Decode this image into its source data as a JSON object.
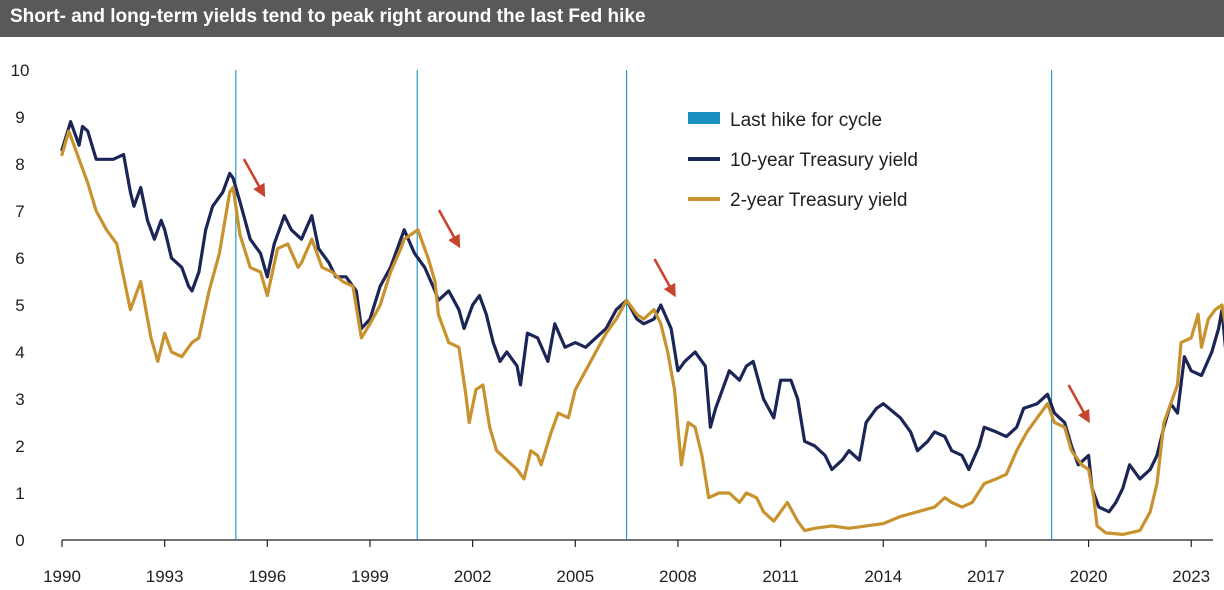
{
  "title": "Short- and long-term yields tend to peak right around the last Fed hike",
  "chart_data": {
    "type": "line",
    "xlim": [
      1990.0,
      2024.25
    ],
    "ylim": [
      0,
      10
    ],
    "x_ticks": [
      {
        "value": 1990,
        "label": "1990"
      },
      {
        "value": 1993,
        "label": "1993"
      },
      {
        "value": 1996,
        "label": "1996"
      },
      {
        "value": 1999,
        "label": "1999"
      },
      {
        "value": 2002,
        "label": "2002"
      },
      {
        "value": 2005,
        "label": "2005"
      },
      {
        "value": 2008,
        "label": "2008"
      },
      {
        "value": 2011,
        "label": "2011"
      },
      {
        "value": 2014,
        "label": "2014"
      },
      {
        "value": 2017,
        "label": "2017"
      },
      {
        "value": 2020,
        "label": "2020"
      },
      {
        "value": 2023,
        "label": "2023"
      }
    ],
    "y_ticks": [
      0,
      1,
      2,
      3,
      4,
      5,
      6,
      7,
      8,
      9,
      10
    ],
    "grid": false,
    "legend": {
      "position": "top-right",
      "entries": [
        {
          "label": "Last hike for cycle",
          "color": "#1a8fc0",
          "marker": "square"
        },
        {
          "label": "10-year Treasury yield",
          "color": "#1b2556",
          "marker": "line"
        },
        {
          "label": "2-year Treasury yield",
          "color": "#c8922e",
          "marker": "line"
        }
      ]
    },
    "last_hikes": [
      1995.08,
      2000.38,
      2006.5,
      2018.92
    ],
    "peak_arrows": [
      1995.9,
      2001.6,
      2007.9,
      2020.0
    ],
    "series": [
      {
        "name": "10-year Treasury yield",
        "color": "#1b2556",
        "points": [
          [
            1990.0,
            8.3
          ],
          [
            1990.25,
            8.9
          ],
          [
            1990.5,
            8.4
          ],
          [
            1990.6,
            8.8
          ],
          [
            1990.75,
            8.7
          ],
          [
            1991.0,
            8.1
          ],
          [
            1991.5,
            8.1
          ],
          [
            1991.8,
            8.2
          ],
          [
            1992.0,
            7.4
          ],
          [
            1992.1,
            7.1
          ],
          [
            1992.3,
            7.5
          ],
          [
            1992.5,
            6.8
          ],
          [
            1992.7,
            6.4
          ],
          [
            1992.9,
            6.8
          ],
          [
            1993.0,
            6.6
          ],
          [
            1993.2,
            6.0
          ],
          [
            1993.5,
            5.8
          ],
          [
            1993.7,
            5.4
          ],
          [
            1993.8,
            5.3
          ],
          [
            1994.0,
            5.7
          ],
          [
            1994.2,
            6.6
          ],
          [
            1994.4,
            7.1
          ],
          [
            1994.7,
            7.4
          ],
          [
            1994.9,
            7.8
          ],
          [
            1995.0,
            7.7
          ],
          [
            1995.2,
            7.2
          ],
          [
            1995.5,
            6.4
          ],
          [
            1995.8,
            6.1
          ],
          [
            1996.0,
            5.6
          ],
          [
            1996.2,
            6.3
          ],
          [
            1996.5,
            6.9
          ],
          [
            1996.7,
            6.6
          ],
          [
            1997.0,
            6.4
          ],
          [
            1997.3,
            6.9
          ],
          [
            1997.5,
            6.2
          ],
          [
            1997.8,
            5.9
          ],
          [
            1998.0,
            5.6
          ],
          [
            1998.3,
            5.6
          ],
          [
            1998.6,
            5.3
          ],
          [
            1998.75,
            4.5
          ],
          [
            1999.0,
            4.7
          ],
          [
            1999.3,
            5.4
          ],
          [
            1999.6,
            5.8
          ],
          [
            1999.9,
            6.4
          ],
          [
            2000.0,
            6.6
          ],
          [
            2000.3,
            6.1
          ],
          [
            2000.6,
            5.8
          ],
          [
            2000.9,
            5.3
          ],
          [
            2001.0,
            5.1
          ],
          [
            2001.3,
            5.3
          ],
          [
            2001.6,
            4.9
          ],
          [
            2001.75,
            4.5
          ],
          [
            2002.0,
            5.0
          ],
          [
            2002.2,
            5.2
          ],
          [
            2002.4,
            4.8
          ],
          [
            2002.6,
            4.2
          ],
          [
            2002.8,
            3.8
          ],
          [
            2003.0,
            4.0
          ],
          [
            2003.3,
            3.7
          ],
          [
            2003.4,
            3.3
          ],
          [
            2003.6,
            4.4
          ],
          [
            2003.9,
            4.3
          ],
          [
            2004.2,
            3.8
          ],
          [
            2004.4,
            4.6
          ],
          [
            2004.7,
            4.1
          ],
          [
            2005.0,
            4.2
          ],
          [
            2005.3,
            4.1
          ],
          [
            2005.6,
            4.3
          ],
          [
            2005.9,
            4.5
          ],
          [
            2006.2,
            4.9
          ],
          [
            2006.5,
            5.1
          ],
          [
            2006.8,
            4.7
          ],
          [
            2007.0,
            4.6
          ],
          [
            2007.3,
            4.7
          ],
          [
            2007.5,
            5.0
          ],
          [
            2007.8,
            4.5
          ],
          [
            2008.0,
            3.6
          ],
          [
            2008.2,
            3.8
          ],
          [
            2008.5,
            4.0
          ],
          [
            2008.8,
            3.7
          ],
          [
            2008.95,
            2.4
          ],
          [
            2009.1,
            2.8
          ],
          [
            2009.5,
            3.6
          ],
          [
            2009.8,
            3.4
          ],
          [
            2010.0,
            3.7
          ],
          [
            2010.2,
            3.8
          ],
          [
            2010.5,
            3.0
          ],
          [
            2010.8,
            2.6
          ],
          [
            2011.0,
            3.4
          ],
          [
            2011.3,
            3.4
          ],
          [
            2011.5,
            3.0
          ],
          [
            2011.7,
            2.1
          ],
          [
            2012.0,
            2.0
          ],
          [
            2012.3,
            1.8
          ],
          [
            2012.5,
            1.5
          ],
          [
            2012.8,
            1.7
          ],
          [
            2013.0,
            1.9
          ],
          [
            2013.3,
            1.7
          ],
          [
            2013.5,
            2.5
          ],
          [
            2013.8,
            2.8
          ],
          [
            2014.0,
            2.9
          ],
          [
            2014.5,
            2.6
          ],
          [
            2014.8,
            2.3
          ],
          [
            2015.0,
            1.9
          ],
          [
            2015.3,
            2.1
          ],
          [
            2015.5,
            2.3
          ],
          [
            2015.8,
            2.2
          ],
          [
            2016.0,
            1.9
          ],
          [
            2016.3,
            1.8
          ],
          [
            2016.5,
            1.5
          ],
          [
            2016.8,
            2.0
          ],
          [
            2016.95,
            2.4
          ],
          [
            2017.3,
            2.3
          ],
          [
            2017.6,
            2.2
          ],
          [
            2017.9,
            2.4
          ],
          [
            2018.1,
            2.8
          ],
          [
            2018.5,
            2.9
          ],
          [
            2018.8,
            3.1
          ],
          [
            2019.0,
            2.7
          ],
          [
            2019.3,
            2.5
          ],
          [
            2019.5,
            2.0
          ],
          [
            2019.7,
            1.6
          ],
          [
            2020.0,
            1.8
          ],
          [
            2020.1,
            1.1
          ],
          [
            2020.3,
            0.7
          ],
          [
            2020.6,
            0.6
          ],
          [
            2020.8,
            0.8
          ],
          [
            2021.0,
            1.1
          ],
          [
            2021.2,
            1.6
          ],
          [
            2021.5,
            1.3
          ],
          [
            2021.8,
            1.5
          ],
          [
            2022.0,
            1.8
          ],
          [
            2022.2,
            2.4
          ],
          [
            2022.4,
            2.9
          ],
          [
            2022.6,
            2.7
          ],
          [
            2022.8,
            3.9
          ],
          [
            2023.0,
            3.6
          ],
          [
            2023.3,
            3.5
          ],
          [
            2023.6,
            4.0
          ],
          [
            2023.8,
            4.5
          ],
          [
            2023.9,
            4.9
          ],
          [
            2024.0,
            4.1
          ],
          [
            2024.2,
            4.4
          ]
        ]
      },
      {
        "name": "2-year Treasury yield",
        "color": "#c8922e",
        "points": [
          [
            1990.0,
            8.2
          ],
          [
            1990.2,
            8.7
          ],
          [
            1990.5,
            8.1
          ],
          [
            1990.75,
            7.6
          ],
          [
            1991.0,
            7.0
          ],
          [
            1991.3,
            6.6
          ],
          [
            1991.6,
            6.3
          ],
          [
            1991.8,
            5.6
          ],
          [
            1992.0,
            4.9
          ],
          [
            1992.3,
            5.5
          ],
          [
            1992.6,
            4.3
          ],
          [
            1992.8,
            3.8
          ],
          [
            1993.0,
            4.4
          ],
          [
            1993.2,
            4.0
          ],
          [
            1993.5,
            3.9
          ],
          [
            1993.8,
            4.2
          ],
          [
            1994.0,
            4.3
          ],
          [
            1994.3,
            5.3
          ],
          [
            1994.6,
            6.1
          ],
          [
            1994.9,
            7.4
          ],
          [
            1995.0,
            7.5
          ],
          [
            1995.2,
            6.5
          ],
          [
            1995.5,
            5.8
          ],
          [
            1995.8,
            5.7
          ],
          [
            1996.0,
            5.2
          ],
          [
            1996.3,
            6.2
          ],
          [
            1996.6,
            6.3
          ],
          [
            1996.9,
            5.8
          ],
          [
            1997.0,
            5.9
          ],
          [
            1997.3,
            6.4
          ],
          [
            1997.6,
            5.8
          ],
          [
            1997.9,
            5.7
          ],
          [
            1998.2,
            5.5
          ],
          [
            1998.5,
            5.4
          ],
          [
            1998.75,
            4.3
          ],
          [
            1999.0,
            4.6
          ],
          [
            1999.3,
            5.0
          ],
          [
            1999.6,
            5.7
          ],
          [
            1999.9,
            6.2
          ],
          [
            2000.0,
            6.4
          ],
          [
            2000.4,
            6.6
          ],
          [
            2000.7,
            6.0
          ],
          [
            2000.9,
            5.5
          ],
          [
            2001.0,
            4.8
          ],
          [
            2001.3,
            4.2
          ],
          [
            2001.6,
            4.1
          ],
          [
            2001.8,
            3.1
          ],
          [
            2001.9,
            2.5
          ],
          [
            2002.1,
            3.2
          ],
          [
            2002.3,
            3.3
          ],
          [
            2002.5,
            2.4
          ],
          [
            2002.7,
            1.9
          ],
          [
            2003.0,
            1.7
          ],
          [
            2003.3,
            1.5
          ],
          [
            2003.5,
            1.3
          ],
          [
            2003.7,
            1.9
          ],
          [
            2003.9,
            1.8
          ],
          [
            2004.0,
            1.6
          ],
          [
            2004.3,
            2.3
          ],
          [
            2004.5,
            2.7
          ],
          [
            2004.8,
            2.6
          ],
          [
            2005.0,
            3.2
          ],
          [
            2005.3,
            3.6
          ],
          [
            2005.6,
            4.0
          ],
          [
            2005.9,
            4.4
          ],
          [
            2006.2,
            4.7
          ],
          [
            2006.5,
            5.1
          ],
          [
            2006.8,
            4.8
          ],
          [
            2007.0,
            4.7
          ],
          [
            2007.3,
            4.9
          ],
          [
            2007.5,
            4.6
          ],
          [
            2007.7,
            4.0
          ],
          [
            2007.9,
            3.2
          ],
          [
            2008.0,
            2.4
          ],
          [
            2008.1,
            1.6
          ],
          [
            2008.3,
            2.5
          ],
          [
            2008.5,
            2.4
          ],
          [
            2008.7,
            1.8
          ],
          [
            2008.9,
            0.9
          ],
          [
            2009.2,
            1.0
          ],
          [
            2009.5,
            1.0
          ],
          [
            2009.8,
            0.8
          ],
          [
            2010.0,
            1.0
          ],
          [
            2010.3,
            0.9
          ],
          [
            2010.5,
            0.6
          ],
          [
            2010.8,
            0.4
          ],
          [
            2011.0,
            0.6
          ],
          [
            2011.2,
            0.8
          ],
          [
            2011.5,
            0.4
          ],
          [
            2011.7,
            0.2
          ],
          [
            2012.0,
            0.25
          ],
          [
            2012.5,
            0.3
          ],
          [
            2013.0,
            0.25
          ],
          [
            2013.5,
            0.3
          ],
          [
            2014.0,
            0.35
          ],
          [
            2014.5,
            0.5
          ],
          [
            2015.0,
            0.6
          ],
          [
            2015.5,
            0.7
          ],
          [
            2015.8,
            0.9
          ],
          [
            2016.0,
            0.8
          ],
          [
            2016.3,
            0.7
          ],
          [
            2016.6,
            0.8
          ],
          [
            2016.95,
            1.2
          ],
          [
            2017.3,
            1.3
          ],
          [
            2017.6,
            1.4
          ],
          [
            2017.9,
            1.9
          ],
          [
            2018.2,
            2.3
          ],
          [
            2018.5,
            2.6
          ],
          [
            2018.8,
            2.9
          ],
          [
            2019.0,
            2.5
          ],
          [
            2019.3,
            2.4
          ],
          [
            2019.5,
            1.9
          ],
          [
            2019.8,
            1.6
          ],
          [
            2020.0,
            1.5
          ],
          [
            2020.15,
            0.9
          ],
          [
            2020.25,
            0.3
          ],
          [
            2020.5,
            0.15
          ],
          [
            2021.0,
            0.12
          ],
          [
            2021.5,
            0.2
          ],
          [
            2021.8,
            0.6
          ],
          [
            2022.0,
            1.2
          ],
          [
            2022.2,
            2.5
          ],
          [
            2022.4,
            2.9
          ],
          [
            2022.6,
            3.3
          ],
          [
            2022.7,
            4.2
          ],
          [
            2023.0,
            4.3
          ],
          [
            2023.2,
            4.8
          ],
          [
            2023.3,
            4.1
          ],
          [
            2023.5,
            4.7
          ],
          [
            2023.7,
            4.9
          ],
          [
            2023.9,
            5.0
          ],
          [
            2024.0,
            4.6
          ],
          [
            2024.1,
            4.9
          ]
        ]
      }
    ]
  }
}
